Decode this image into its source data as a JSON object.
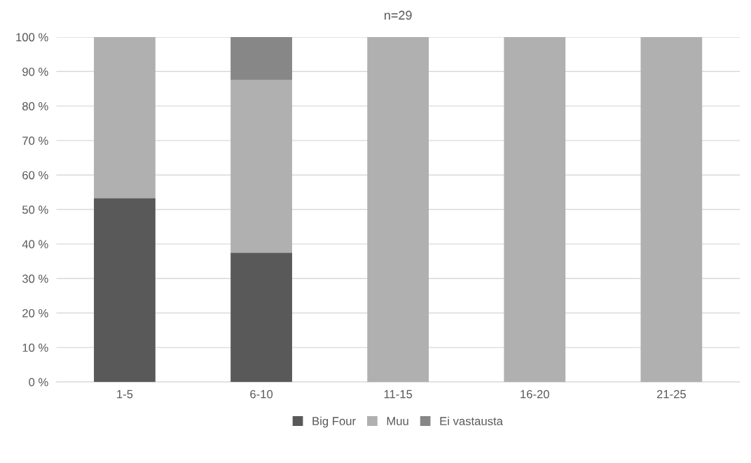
{
  "chart_data": {
    "type": "bar",
    "title": "n=29",
    "stacked": true,
    "categories": [
      "1-5",
      "6-10",
      "11-15",
      "16-20",
      "21-25"
    ],
    "series": [
      {
        "name": "Big Four",
        "color": "#595959",
        "values": [
          53.3,
          37.5,
          0,
          0,
          0
        ]
      },
      {
        "name": "Muu",
        "color": "#b0b0b0",
        "values": [
          46.7,
          50,
          100,
          100,
          100
        ]
      },
      {
        "name": "Ei vastausta",
        "color": "#878787",
        "values": [
          0,
          12.5,
          0,
          0,
          0
        ]
      }
    ],
    "ylim": [
      0,
      100
    ],
    "yticks": [
      {
        "value": 0,
        "label": "0 %"
      },
      {
        "value": 10,
        "label": "10 %"
      },
      {
        "value": 20,
        "label": "20 %"
      },
      {
        "value": 30,
        "label": "30 %"
      },
      {
        "value": 40,
        "label": "40 %"
      },
      {
        "value": 50,
        "label": "50 %"
      },
      {
        "value": 60,
        "label": "60 %"
      },
      {
        "value": 70,
        "label": "70 %"
      },
      {
        "value": 80,
        "label": "80 %"
      },
      {
        "value": 90,
        "label": "90 %"
      },
      {
        "value": 100,
        "label": "100 %"
      }
    ],
    "grid": "y",
    "legend": "bottom"
  }
}
